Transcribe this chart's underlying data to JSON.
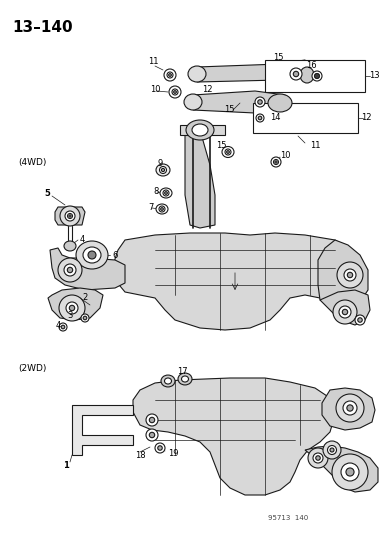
{
  "title": "13–140",
  "background_color": "#ffffff",
  "text_color": "#000000",
  "page_number": "95713  140",
  "section_4wd_label": "(4WD)",
  "section_2wd_label": "(2WD)",
  "fig_width": 3.86,
  "fig_height": 5.33,
  "dpi": 100,
  "line_color": "#1a1a1a",
  "lw_thick": 1.2,
  "lw_med": 0.8,
  "lw_thin": 0.5
}
